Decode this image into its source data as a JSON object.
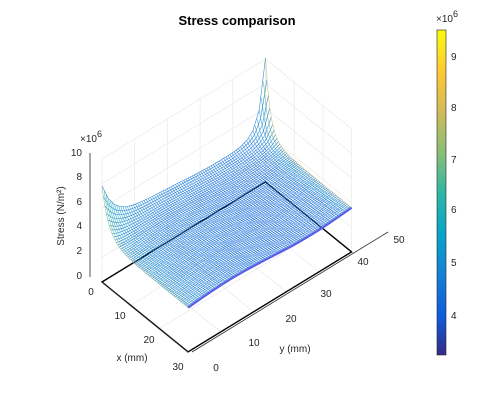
{
  "chart_data": {
    "type": "surface",
    "title": "Stress comparison",
    "xlabel": "x (mm)",
    "ylabel": "y (mm)",
    "zlabel": "Stress (N/m²)",
    "z_multiplier": "×10",
    "z_multiplier_exp": "6",
    "x_ticks": [
      "0",
      "10",
      "20",
      "30"
    ],
    "y_ticks": [
      "0",
      "10",
      "20",
      "30",
      "40",
      "50"
    ],
    "z_ticks": [
      "0",
      "2",
      "4",
      "6",
      "8",
      "10"
    ],
    "xlim": [
      0,
      30
    ],
    "ylim": [
      0,
      50
    ],
    "zlim": [
      0,
      10
    ],
    "z_unit_scale": 1000000,
    "colorbar": {
      "ticks": [
        "4",
        "5",
        "6",
        "7",
        "8",
        "9"
      ],
      "multiplier": "×10",
      "multiplier_exp": "6",
      "clim": [
        3.2,
        9.7
      ],
      "colormap": "parula"
    },
    "surface_samples": {
      "x_mm": [
        0,
        15,
        30
      ],
      "y_mm": [
        0,
        25,
        50
      ],
      "stress_1e6": [
        [
          7.5,
          4.0,
          9.7
        ],
        [
          4.0,
          3.8,
          4.5
        ],
        [
          3.6,
          3.6,
          3.8
        ]
      ]
    },
    "grid": true
  }
}
